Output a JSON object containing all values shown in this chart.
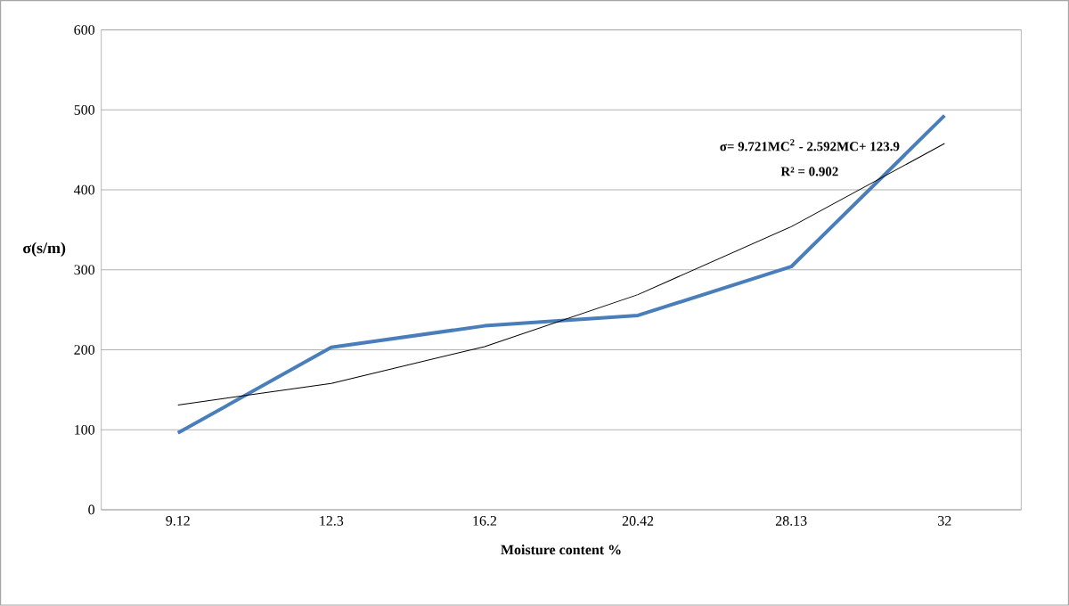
{
  "chart_data": {
    "type": "line",
    "xlabel": "Moisture content %",
    "ylabel": "σ(s/m)",
    "categories": [
      "9.12",
      "12.3",
      "16.2",
      "20.42",
      "28.13",
      "32"
    ],
    "series": [
      {
        "color": "#4a7ebb",
        "values": [
          96,
          203,
          230,
          243,
          304,
          493
        ]
      },
      {
        "color": "#000000",
        "values": [
          131,
          158,
          204,
          269,
          354,
          458
        ]
      }
    ],
    "ylim": [
      0,
      600
    ],
    "yticks": [
      0,
      100,
      200,
      300,
      400,
      500,
      600
    ],
    "grid": "y",
    "annotations": [
      "σ= 9.721MC$^{2}$ - 2.592MC+ 123.9",
      "R² = 0.902"
    ]
  }
}
